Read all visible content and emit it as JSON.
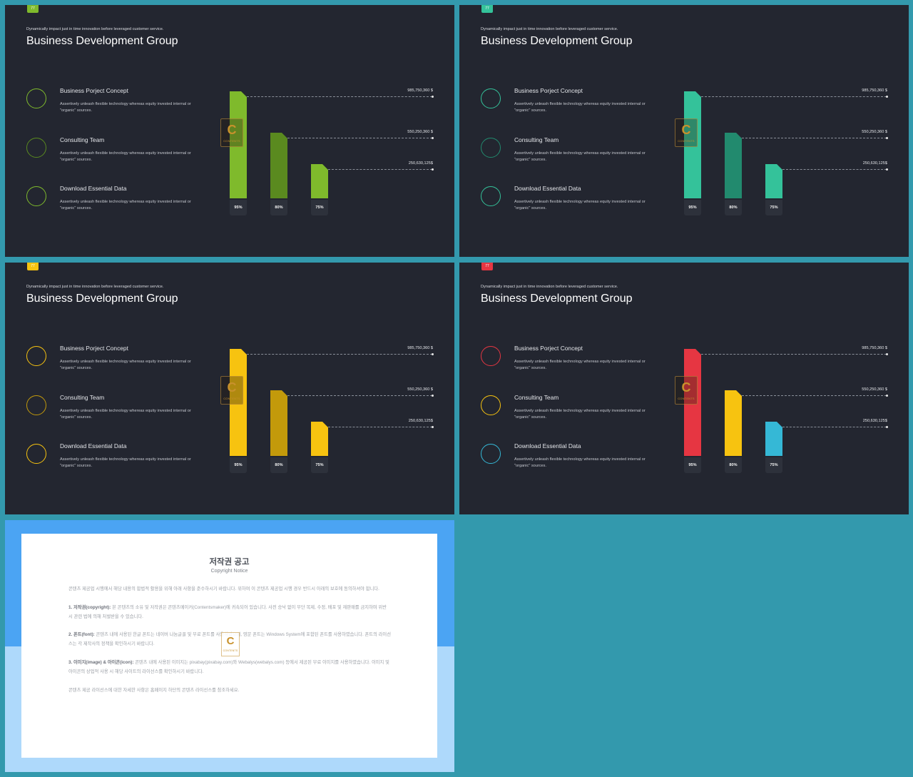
{
  "colors": {
    "background": "#3399ad",
    "slide": "#232630",
    "green": "#7fba2c",
    "green_dark": "#5a8a1f",
    "teal": "#34c29a",
    "teal_dark": "#228a6e",
    "yellow": "#f7c310",
    "yellow_dark": "#c39a0b",
    "red": "#e63642",
    "cyan": "#35b8d6"
  },
  "slides": [
    {
      "page_number": "77",
      "subtitle": "Dynamically impact just in time innovation before leveraged customer service.",
      "title": "Business Development Group",
      "items": [
        {
          "title": "Business Porject Concept",
          "desc": "Assertively unleash flexible technology whereas equity invested internal or \"organic\" sources."
        },
        {
          "title": "Consulting Team",
          "desc": "Assertively unleash flexible technology whereas equity invested internal or \"organic\" sources."
        },
        {
          "title": "Download Essential Data",
          "desc": "Assertively unleash flexible technology whereas equity invested internal or \"organic\" sources."
        }
      ],
      "bars": [
        {
          "label": "95%",
          "value": "985,750,360 $"
        },
        {
          "label": "80%",
          "value": "550,250,360 $"
        },
        {
          "label": "75%",
          "value": "250,630,125$"
        }
      ],
      "watermark": {
        "letter": "C",
        "text": "CONTENTS"
      }
    },
    {
      "page_number": "77",
      "subtitle": "Dynamically impact just in time innovation before leveraged customer service.",
      "title": "Business Development Group",
      "items": [
        {
          "title": "Business Porject Concept",
          "desc": "Assertively unleash flexible technology whereas equity invested internal or \"organic\" sources."
        },
        {
          "title": "Consulting Team",
          "desc": "Assertively unleash flexible technology whereas equity invested internal or \"organic\" sources."
        },
        {
          "title": "Download Essential Data",
          "desc": "Assertively unleash flexible technology whereas equity invested internal or \"organic\" sources."
        }
      ],
      "bars": [
        {
          "label": "95%",
          "value": "985,750,360 $"
        },
        {
          "label": "80%",
          "value": "550,250,360 $"
        },
        {
          "label": "75%",
          "value": "250,630,125$"
        }
      ],
      "watermark": {
        "letter": "C",
        "text": "CONTENTS"
      }
    },
    {
      "page_number": "77",
      "subtitle": "Dynamically impact just in time innovation before leveraged customer service.",
      "title": "Business Development Group",
      "items": [
        {
          "title": "Business Porject Concept",
          "desc": "Assertively unleash flexible technology whereas equity invested internal or \"organic\" sources."
        },
        {
          "title": "Consulting Team",
          "desc": "Assertively unleash flexible technology whereas equity invested internal or \"organic\" sources."
        },
        {
          "title": "Download Essential Data",
          "desc": "Assertively unleash flexible technology whereas equity invested internal or \"organic\" sources."
        }
      ],
      "bars": [
        {
          "label": "95%",
          "value": "985,750,360 $"
        },
        {
          "label": "80%",
          "value": "550,250,360 $"
        },
        {
          "label": "75%",
          "value": "250,630,125$"
        }
      ],
      "watermark": {
        "letter": "C",
        "text": "CONTENTS"
      }
    },
    {
      "page_number": "77",
      "subtitle": "Dynamically impact just in time innovation before leveraged customer service.",
      "title": "Business Development Group",
      "items": [
        {
          "title": "Business Porject Concept",
          "desc": "Assertively unleash flexible technology whereas equity invested internal or \"organic\" sources."
        },
        {
          "title": "Consulting Team",
          "desc": "Assertively unleash flexible technology whereas equity invested internal or \"organic\" sources."
        },
        {
          "title": "Download Essential Data",
          "desc": "Assertively unleash flexible technology whereas equity invested internal or \"organic\" sources."
        }
      ],
      "bars": [
        {
          "label": "95%",
          "value": "985,750,360 $"
        },
        {
          "label": "80%",
          "value": "550,250,360 $"
        },
        {
          "label": "75%",
          "value": "250,630,125$"
        }
      ],
      "watermark": {
        "letter": "C",
        "text": "CONTENTS"
      }
    }
  ],
  "notice": {
    "title": "저작권 공고",
    "subtitle": "Copyright Notice",
    "intro": "콘텐츠 제공업 시행에서 해당 내용의 합법적 활용을 위해 아래 사항을 준수하시기 바랍니다. 위하여 이 콘텐츠 제공업 시행 경우 반드시 아래의 보호에 동의하셔야 합니다.",
    "p1_head": "1. 저작권(copyright):",
    "p1": "본 콘텐츠의 소유 및 저작권은 콘텐츠메이커(Contentsmaker)에 귀속되어 있습니다. 사전 승낙 없이 무단 복제, 수정, 배포 및 재판매를 금지하며 위반 시 관련 법에 의해 처벌받을 수 있습니다.",
    "p2_head": "2. 폰트(font):",
    "p2": "콘텐츠 내에 사용된 한글 폰트는 네이버 나눔글꼴 및 무료 폰트를 사용하였으며, 영문 폰트는 Windows System에 포함된 폰트를 사용하였습니다. 폰트의 라이선스는 각 제작사의 정책을 확인하시기 바랍니다.",
    "p3_head": "3. 이미지(image) & 아이콘(icon):",
    "p3": "콘텐츠 내에 사용된 이미지는 pixabay(pixabay.com)와 Webalys(webalys.com) 등에서 제공된 무료 이미지를 사용하였습니다. 이미지 및 아이콘의 상업적 사용 시 해당 사이트의 라이선스를 확인하시기 바랍니다.",
    "closing": "콘텐츠 제공 라이선스에 대한 자세한 사항은 홈페이지 하단의 콘텐츠 라이선스를 참조하세요."
  },
  "chart_data": [
    {
      "type": "bar",
      "categories": [
        "95%",
        "80%",
        "75%"
      ],
      "values": [
        95,
        80,
        75
      ],
      "annotations": [
        "985,750,360 $",
        "550,250,360 $",
        "250,630,125$"
      ],
      "colors": [
        "#7fba2c",
        "#5a8a1f",
        "#7fba2c"
      ]
    },
    {
      "type": "bar",
      "categories": [
        "95%",
        "80%",
        "75%"
      ],
      "values": [
        95,
        80,
        75
      ],
      "annotations": [
        "985,750,360 $",
        "550,250,360 $",
        "250,630,125$"
      ],
      "colors": [
        "#34c29a",
        "#228a6e",
        "#34c29a"
      ]
    },
    {
      "type": "bar",
      "categories": [
        "95%",
        "80%",
        "75%"
      ],
      "values": [
        95,
        80,
        75
      ],
      "annotations": [
        "985,750,360 $",
        "550,250,360 $",
        "250,630,125$"
      ],
      "colors": [
        "#f7c310",
        "#c39a0b",
        "#f7c310"
      ]
    },
    {
      "type": "bar",
      "categories": [
        "95%",
        "80%",
        "75%"
      ],
      "values": [
        95,
        80,
        75
      ],
      "annotations": [
        "985,750,360 $",
        "550,250,360 $",
        "250,630,125$"
      ],
      "colors": [
        "#e63642",
        "#f7c310",
        "#35b8d6"
      ]
    }
  ],
  "theme": {
    "badge_colors": [
      "#7fba2c",
      "#34c29a",
      "#f7c310",
      "#e63642"
    ],
    "circle_colors": [
      [
        "#7fba2c",
        "#5a8a1f",
        "#7fba2c"
      ],
      [
        "#34c29a",
        "#228a6e",
        "#34c29a"
      ],
      [
        "#f7c310",
        "#c39a0b",
        "#f7c310"
      ],
      [
        "#e63642",
        "#f7c310",
        "#35b8d6"
      ]
    ]
  }
}
